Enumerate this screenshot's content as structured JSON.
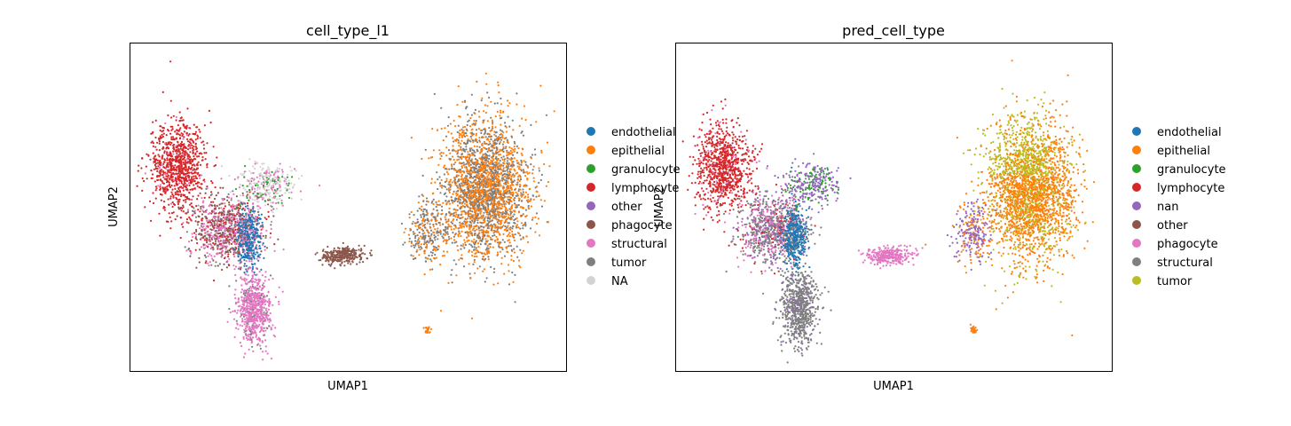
{
  "chart_data": [
    {
      "type": "scatter",
      "title": "cell_type_l1",
      "xlabel": "UMAP1",
      "ylabel": "UMAP2",
      "grid": false,
      "ticks": "none",
      "legend": "right",
      "series": [
        {
          "name": "endothelial",
          "color": "#1f77b4"
        },
        {
          "name": "epithelial",
          "color": "#ff7f0e"
        },
        {
          "name": "granulocyte",
          "color": "#2ca02c"
        },
        {
          "name": "lymphocyte",
          "color": "#d62728"
        },
        {
          "name": "other",
          "color": "#9467bd"
        },
        {
          "name": "phagocyte",
          "color": "#8c564b"
        },
        {
          "name": "structural",
          "color": "#e377c2"
        },
        {
          "name": "tumor",
          "color": "#7f7f7f"
        },
        {
          "name": "NA",
          "color": "#d3d3d3"
        }
      ]
    },
    {
      "type": "scatter",
      "title": "pred_cell_type",
      "xlabel": "UMAP1",
      "ylabel": "UMAP2",
      "grid": false,
      "ticks": "none",
      "legend": "right",
      "series": [
        {
          "name": "endothelial",
          "color": "#1f77b4"
        },
        {
          "name": "epithelial",
          "color": "#ff7f0e"
        },
        {
          "name": "granulocyte",
          "color": "#2ca02c"
        },
        {
          "name": "lymphocyte",
          "color": "#d62728"
        },
        {
          "name": "nan",
          "color": "#9467bd"
        },
        {
          "name": "other",
          "color": "#8c564b"
        },
        {
          "name": "phagocyte",
          "color": "#e377c2"
        },
        {
          "name": "structural",
          "color": "#7f7f7f"
        },
        {
          "name": "tumor",
          "color": "#bcbd22"
        }
      ]
    }
  ]
}
